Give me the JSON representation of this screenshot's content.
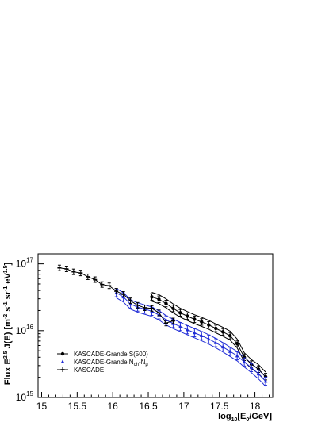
{
  "chart_data": {
    "type": "line",
    "xlabel_main": "log",
    "xlabel_sub1": "10",
    "xlabel_mid": "[E",
    "xlabel_sub2": "0",
    "xlabel_end": "/GeV]",
    "ylabel_text": "Flux E^{2.5} J(E) [m^{-2} s^{-1} sr^{-1} eV^{1.5}]",
    "xlim": [
      14.95,
      18.25
    ],
    "ylim_log10": [
      15,
      17.15
    ],
    "y_scale": "log",
    "x_ticks": [
      "15",
      "15.5",
      "16",
      "16.5",
      "17",
      "17.5",
      "18"
    ],
    "y_ticks": [
      {
        "base": "10",
        "exp": "15"
      },
      {
        "base": "10",
        "exp": "16"
      },
      {
        "base": "10",
        "exp": "17"
      }
    ],
    "legend_placement": "bottom-left",
    "series": [
      {
        "name": "KASCADE-Grande S(500)",
        "marker": "circle",
        "color": "#000000",
        "points": [
          [
            16.55,
            3.2e+16
          ],
          [
            16.65,
            2.95e+16
          ],
          [
            16.75,
            2.55e+16
          ],
          [
            16.85,
            2.15e+16
          ],
          [
            16.95,
            1.85e+16
          ],
          [
            17.05,
            1.65e+16
          ],
          [
            17.15,
            1.48e+16
          ],
          [
            17.25,
            1.35e+16
          ],
          [
            17.35,
            1.22e+16
          ],
          [
            17.45,
            1.08e+16
          ],
          [
            17.55,
            9600000000000000.0
          ],
          [
            17.65,
            8400000000000000.0
          ],
          [
            17.75,
            6400000000000000.0
          ],
          [
            17.85,
            4000000000000000.0
          ],
          [
            17.95,
            3150000000000000.0
          ],
          [
            18.05,
            2650000000000000.0
          ],
          [
            18.15,
            2050000000000000.0
          ]
        ],
        "band_upper_factor": 1.17,
        "band_lower_factor": 0.86,
        "err_factor": 1.12
      },
      {
        "name_main": "KASCADE-Grande N",
        "name_sub1": "ch",
        "name_mid": "-N",
        "name_sub2": "μ",
        "marker": "triangle",
        "color": "#1f2bd6",
        "points": [
          [
            16.05,
            3.7e+16
          ],
          [
            16.15,
            3.2e+16
          ],
          [
            16.25,
            2.5e+16
          ],
          [
            16.35,
            2.25e+16
          ],
          [
            16.45,
            2.1e+16
          ],
          [
            16.55,
            1.95e+16
          ],
          [
            16.65,
            1.72e+16
          ],
          [
            16.75,
            1.45e+16
          ],
          [
            16.85,
            1.28e+16
          ],
          [
            16.95,
            1.15e+16
          ],
          [
            17.05,
            1.03e+16
          ],
          [
            17.15,
            9300000000000000.0
          ],
          [
            17.25,
            8400000000000000.0
          ],
          [
            17.35,
            7500000000000000.0
          ],
          [
            17.45,
            6600000000000000.0
          ],
          [
            17.55,
            5700000000000000.0
          ],
          [
            17.65,
            4900000000000000.0
          ],
          [
            17.75,
            4200000000000000.0
          ],
          [
            17.85,
            3400000000000000.0
          ],
          [
            17.95,
            2800000000000000.0
          ],
          [
            18.05,
            2250000000000000.0
          ],
          [
            18.15,
            1750000000000000.0
          ]
        ],
        "band_upper_factor": 1.16,
        "band_lower_factor": 0.84,
        "err_factor": 1.15
      },
      {
        "name": "KASCADE",
        "marker": "cross",
        "color": "#000000",
        "points": [
          [
            15.25,
            8.7e+16
          ],
          [
            15.35,
            8.4e+16
          ],
          [
            15.45,
            7.6e+16
          ],
          [
            15.55,
            7.3e+16
          ],
          [
            15.65,
            6.4e+16
          ],
          [
            15.75,
            5.8e+16
          ],
          [
            15.85,
            4.9e+16
          ],
          [
            15.95,
            4.7e+16
          ],
          [
            16.05,
            3.9e+16
          ],
          [
            16.15,
            3.5e+16
          ],
          [
            16.25,
            2.8e+16
          ],
          [
            16.35,
            2.4e+16
          ],
          [
            16.45,
            2.2e+16
          ],
          [
            16.55,
            2.15e+16
          ],
          [
            16.65,
            1.85e+16
          ],
          [
            16.75,
            1.3e+16
          ],
          [
            16.85,
            1.4e+16
          ]
        ],
        "err_factor": 1.1
      }
    ]
  }
}
